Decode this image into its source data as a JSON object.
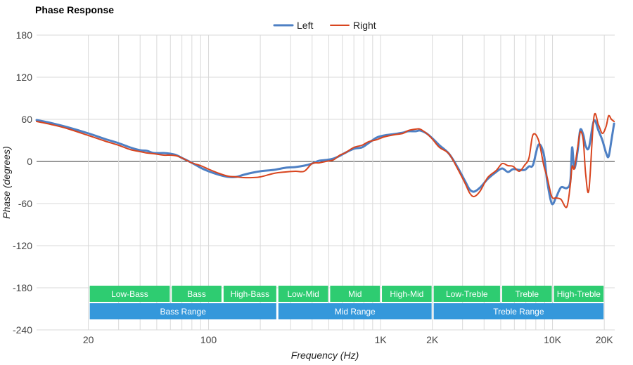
{
  "chart_data": {
    "type": "line",
    "title": "Phase Response",
    "xlabel": "Frequency (Hz)",
    "ylabel": "Phase (degrees)",
    "x_scale": "log",
    "xlim": [
      10,
      23000
    ],
    "ylim": [
      -240,
      180
    ],
    "x_ticks": [
      {
        "value": 20,
        "label": "20"
      },
      {
        "value": 100,
        "label": "100"
      },
      {
        "value": 1000,
        "label": "1K"
      },
      {
        "value": 2000,
        "label": "2K"
      },
      {
        "value": 10000,
        "label": "10K"
      },
      {
        "value": 20000,
        "label": "20K"
      }
    ],
    "y_ticks": [
      {
        "value": 180,
        "label": "180"
      },
      {
        "value": 120,
        "label": "120"
      },
      {
        "value": 60,
        "label": "60"
      },
      {
        "value": 0,
        "label": "0"
      },
      {
        "value": -60,
        "label": "-60"
      },
      {
        "value": -120,
        "label": "-120"
      },
      {
        "value": -180,
        "label": "-180"
      },
      {
        "value": -240,
        "label": "-240"
      }
    ],
    "grid": true,
    "legend_position": "top-center",
    "series": [
      {
        "name": "Left",
        "color": "#4e80c4",
        "points": [
          [
            10,
            59
          ],
          [
            12,
            55
          ],
          [
            15,
            49
          ],
          [
            20,
            40
          ],
          [
            25,
            32
          ],
          [
            30,
            26
          ],
          [
            35,
            20
          ],
          [
            40,
            16
          ],
          [
            44,
            15
          ],
          [
            48,
            12
          ],
          [
            55,
            12
          ],
          [
            60,
            11
          ],
          [
            65,
            9
          ],
          [
            70,
            5
          ],
          [
            80,
            -2
          ],
          [
            90,
            -9
          ],
          [
            100,
            -14
          ],
          [
            115,
            -19
          ],
          [
            130,
            -22
          ],
          [
            145,
            -22
          ],
          [
            160,
            -19
          ],
          [
            180,
            -16
          ],
          [
            200,
            -14
          ],
          [
            240,
            -12
          ],
          [
            280,
            -9
          ],
          [
            320,
            -8
          ],
          [
            360,
            -6
          ],
          [
            400,
            -3
          ],
          [
            440,
            1
          ],
          [
            480,
            2
          ],
          [
            530,
            4
          ],
          [
            580,
            8
          ],
          [
            620,
            12
          ],
          [
            700,
            18
          ],
          [
            780,
            20
          ],
          [
            850,
            26
          ],
          [
            950,
            34
          ],
          [
            1050,
            37
          ],
          [
            1200,
            39
          ],
          [
            1350,
            41
          ],
          [
            1450,
            43
          ],
          [
            1600,
            43
          ],
          [
            1700,
            44
          ],
          [
            1850,
            40
          ],
          [
            2000,
            33
          ],
          [
            2200,
            23
          ],
          [
            2500,
            11
          ],
          [
            2800,
            -8
          ],
          [
            3100,
            -28
          ],
          [
            3300,
            -40
          ],
          [
            3500,
            -43
          ],
          [
            3800,
            -37
          ],
          [
            4200,
            -25
          ],
          [
            4700,
            -15
          ],
          [
            5100,
            -10
          ],
          [
            5500,
            -15
          ],
          [
            5900,
            -11
          ],
          [
            6400,
            -12
          ],
          [
            6900,
            -12
          ],
          [
            7300,
            -7
          ],
          [
            7700,
            -5
          ],
          [
            8300,
            24
          ],
          [
            8900,
            10
          ],
          [
            9300,
            -27
          ],
          [
            9900,
            -60
          ],
          [
            10500,
            -51
          ],
          [
            11200,
            -37
          ],
          [
            12100,
            -38
          ],
          [
            12700,
            -28
          ],
          [
            13000,
            20
          ],
          [
            13400,
            -10
          ],
          [
            14000,
            15
          ],
          [
            14500,
            45
          ],
          [
            15100,
            38
          ],
          [
            15600,
            22
          ],
          [
            16300,
            20
          ],
          [
            17400,
            58
          ],
          [
            18500,
            44
          ],
          [
            19500,
            30
          ],
          [
            20500,
            12
          ],
          [
            21200,
            7
          ],
          [
            22000,
            30
          ],
          [
            22800,
            54
          ]
        ]
      },
      {
        "name": "Right",
        "color": "#d8451f",
        "points": [
          [
            10,
            57
          ],
          [
            12,
            53
          ],
          [
            15,
            47
          ],
          [
            20,
            37
          ],
          [
            25,
            29
          ],
          [
            30,
            23
          ],
          [
            35,
            17
          ],
          [
            40,
            14
          ],
          [
            44,
            12
          ],
          [
            48,
            11
          ],
          [
            55,
            9
          ],
          [
            60,
            9
          ],
          [
            65,
            8
          ],
          [
            70,
            5
          ],
          [
            80,
            -2
          ],
          [
            90,
            -6
          ],
          [
            100,
            -11
          ],
          [
            115,
            -17
          ],
          [
            130,
            -21
          ],
          [
            145,
            -22
          ],
          [
            160,
            -23
          ],
          [
            180,
            -23
          ],
          [
            200,
            -22
          ],
          [
            240,
            -17
          ],
          [
            280,
            -15
          ],
          [
            320,
            -14
          ],
          [
            360,
            -14
          ],
          [
            400,
            -3
          ],
          [
            440,
            -2
          ],
          [
            480,
            0
          ],
          [
            530,
            2
          ],
          [
            580,
            9
          ],
          [
            620,
            12
          ],
          [
            700,
            20
          ],
          [
            780,
            23
          ],
          [
            850,
            28
          ],
          [
            950,
            31
          ],
          [
            1050,
            35
          ],
          [
            1200,
            38
          ],
          [
            1350,
            40
          ],
          [
            1450,
            44
          ],
          [
            1600,
            46
          ],
          [
            1700,
            46
          ],
          [
            1850,
            40
          ],
          [
            2000,
            32
          ],
          [
            2200,
            20
          ],
          [
            2500,
            11
          ],
          [
            2800,
            -10
          ],
          [
            3100,
            -31
          ],
          [
            3300,
            -45
          ],
          [
            3500,
            -50
          ],
          [
            3800,
            -42
          ],
          [
            4200,
            -23
          ],
          [
            4700,
            -13
          ],
          [
            5100,
            -3
          ],
          [
            5500,
            -6
          ],
          [
            5900,
            -7
          ],
          [
            6400,
            -14
          ],
          [
            6900,
            -5
          ],
          [
            7300,
            5
          ],
          [
            7700,
            38
          ],
          [
            8300,
            30
          ],
          [
            8900,
            -6
          ],
          [
            9300,
            -22
          ],
          [
            9900,
            -50
          ],
          [
            10500,
            -52
          ],
          [
            11200,
            -54
          ],
          [
            12100,
            -65
          ],
          [
            12700,
            -33
          ],
          [
            13000,
            -7
          ],
          [
            13400,
            -10
          ],
          [
            14000,
            20
          ],
          [
            14500,
            42
          ],
          [
            15100,
            30
          ],
          [
            15600,
            -19
          ],
          [
            16300,
            -40
          ],
          [
            17400,
            63
          ],
          [
            18500,
            52
          ],
          [
            19500,
            40
          ],
          [
            20500,
            50
          ],
          [
            21200,
            65
          ],
          [
            22000,
            60
          ],
          [
            22800,
            57
          ]
        ]
      }
    ],
    "range_bands": {
      "rows": [
        [
          {
            "label": "Low-Bass",
            "from": 20,
            "to": 60
          },
          {
            "label": "Bass",
            "from": 60,
            "to": 120
          },
          {
            "label": "High-Bass",
            "from": 120,
            "to": 250
          },
          {
            "label": "Low-Mid",
            "from": 250,
            "to": 500
          },
          {
            "label": "Mid",
            "from": 500,
            "to": 1000
          },
          {
            "label": "High-Mid",
            "from": 1000,
            "to": 2000
          },
          {
            "label": "Low-Treble",
            "from": 2000,
            "to": 5000
          },
          {
            "label": "Treble",
            "from": 5000,
            "to": 10000
          },
          {
            "label": "High-Treble",
            "from": 10000,
            "to": 20000
          }
        ],
        [
          {
            "label": "Bass Range",
            "from": 20,
            "to": 250
          },
          {
            "label": "Mid Range",
            "from": 250,
            "to": 2000
          },
          {
            "label": "Treble Range",
            "from": 2000,
            "to": 20000
          }
        ]
      ],
      "colors": [
        "#2ecc71",
        "#3498db"
      ]
    }
  }
}
